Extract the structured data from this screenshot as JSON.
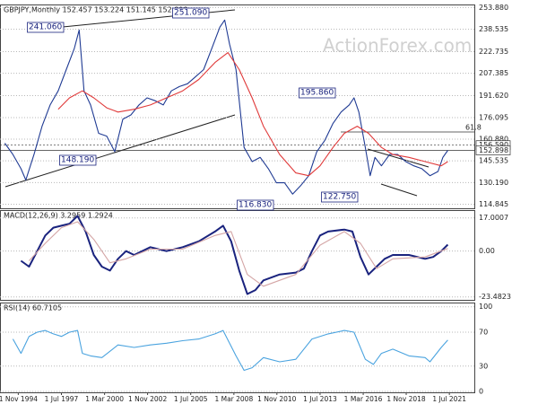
{
  "chart_data": [
    {
      "type": "line",
      "title": "GBPJPY,Monthly 152.457 153.224 151.145 152.898",
      "watermark": "ActionForex.com",
      "xlim": [
        1993.7,
        2023.1
      ],
      "ylim": [
        112,
        256
      ],
      "yticks": [
        {
          "value": 253.88,
          "label": "253.880"
        },
        {
          "value": 238.535,
          "label": "238.535"
        },
        {
          "value": 222.735,
          "label": "222.735"
        },
        {
          "value": 207.385,
          "label": "207.385"
        },
        {
          "value": 191.62,
          "label": "191.620"
        },
        {
          "value": 176.095,
          "label": "176.095"
        },
        {
          "value": 160.88,
          "label": "160.880"
        },
        {
          "value": 145.535,
          "label": "145.535"
        },
        {
          "value": 130.19,
          "label": "130.190"
        },
        {
          "value": 114.845,
          "label": "114.845"
        }
      ],
      "price_levels": [
        {
          "value": 156.59,
          "label": "156.590"
        },
        {
          "value": 152.898,
          "label": "152.898"
        }
      ],
      "annotations": [
        "241.060",
        "251.090",
        "148.190",
        "116.830",
        "195.860",
        "122.750",
        "61.8"
      ],
      "series": [
        {
          "name": "GBPJPY",
          "color": "#1f3a93",
          "x": [
            1994.0,
            1994.5,
            1995.0,
            1995.3,
            1995.8,
            1996.3,
            1996.8,
            1997.3,
            1997.8,
            1998.3,
            1998.6,
            1998.9,
            1999.3,
            1999.8,
            2000.3,
            2000.8,
            2001.3,
            2001.8,
            2002.3,
            2002.8,
            2003.3,
            2003.8,
            2004.3,
            2004.8,
            2005.3,
            2005.8,
            2006.3,
            2006.8,
            2007.3,
            2007.6,
            2007.9,
            2008.3,
            2008.8,
            2009.3,
            2009.8,
            2010.3,
            2010.8,
            2011.3,
            2011.8,
            2012.3,
            2012.8,
            2013.3,
            2013.8,
            2014.3,
            2014.8,
            2015.3,
            2015.6,
            2015.9,
            2016.3,
            2016.6,
            2016.9,
            2017.3,
            2017.8,
            2018.3,
            2018.8,
            2019.3,
            2019.8,
            2020.3,
            2020.8,
            2021.1,
            2021.4
          ],
          "values": [
            158,
            150,
            140,
            132,
            150,
            170,
            185,
            195,
            210,
            225,
            238,
            195,
            185,
            165,
            163,
            152,
            175,
            178,
            185,
            190,
            188,
            185,
            195,
            198,
            200,
            205,
            210,
            225,
            240,
            245,
            228,
            210,
            155,
            145,
            148,
            140,
            130,
            130,
            122,
            128,
            135,
            152,
            160,
            172,
            180,
            185,
            190,
            180,
            155,
            135,
            148,
            142,
            150,
            150,
            145,
            142,
            140,
            135,
            138,
            148,
            152.898
          ]
        },
        {
          "name": "SMA",
          "color": "#e03a3a",
          "x": [
            1997.3,
            1998.0,
            1998.8,
            1999.5,
            2000.3,
            2001.0,
            2002.0,
            2003.0,
            2004.0,
            2005.0,
            2006.0,
            2007.0,
            2007.8,
            2008.5,
            2009.3,
            2010.0,
            2011.0,
            2012.0,
            2012.8,
            2013.5,
            2014.3,
            2015.0,
            2015.8,
            2016.5,
            2017.3,
            2018.0,
            2019.0,
            2020.0,
            2021.0,
            2021.4
          ],
          "values": [
            182,
            190,
            195,
            190,
            183,
            180,
            182,
            185,
            190,
            195,
            203,
            215,
            222,
            210,
            190,
            170,
            150,
            137,
            135,
            142,
            155,
            165,
            170,
            165,
            155,
            150,
            148,
            145,
            142,
            145
          ]
        }
      ]
    },
    {
      "type": "line",
      "title": "MACD(12,26,9) 3.2959 1.2924",
      "xlim": [
        1993.7,
        2023.1
      ],
      "ylim": [
        -25,
        21
      ],
      "yticks": [
        {
          "value": 17.0007,
          "label": "17.0007"
        },
        {
          "value": 0,
          "label": "0.00"
        },
        {
          "value": -23.4823,
          "label": "-23.4823"
        }
      ],
      "series": [
        {
          "name": "MACD",
          "color": "#1a237e",
          "x": [
            1995.0,
            1995.5,
            1996.0,
            1996.5,
            1997.0,
            1997.5,
            1998.0,
            1998.5,
            1999.0,
            1999.5,
            2000.0,
            2000.5,
            2001.0,
            2001.5,
            2002.0,
            2003.0,
            2004.0,
            2005.0,
            2006.0,
            2007.0,
            2007.5,
            2008.0,
            2008.5,
            2009.0,
            2009.5,
            2010.0,
            2011.0,
            2012.0,
            2012.5,
            2013.0,
            2013.5,
            2014.0,
            2015.0,
            2015.5,
            2016.0,
            2016.5,
            2017.0,
            2017.5,
            2018.0,
            2019.0,
            2020.0,
            2020.5,
            2021.0,
            2021.4
          ],
          "values": [
            -5,
            -8,
            0,
            8,
            12,
            13,
            14,
            18,
            10,
            -2,
            -8,
            -10,
            -4,
            0,
            -2,
            2,
            0,
            2,
            5,
            10,
            13,
            5,
            -10,
            -22,
            -20,
            -15,
            -12,
            -11,
            -9,
            0,
            8,
            10,
            11,
            10,
            -3,
            -12,
            -8,
            -4,
            -2,
            -2,
            -4,
            -3,
            0,
            3.2959
          ]
        },
        {
          "name": "Signal",
          "color": "#d4a5a5",
          "x": [
            1995.5,
            1996.5,
            1997.5,
            1998.5,
            1999.5,
            2000.5,
            2001.5,
            2003.0,
            2005.0,
            2007.0,
            2008.0,
            2009.0,
            2010.0,
            2012.0,
            2013.5,
            2015.0,
            2016.0,
            2017.0,
            2018.0,
            2020.0,
            2021.4
          ],
          "values": [
            -5,
            4,
            12,
            15,
            6,
            -6,
            -4,
            1,
            1,
            8,
            10,
            -12,
            -18,
            -12,
            3,
            10,
            4,
            -9,
            -4,
            -3,
            1.2924
          ]
        }
      ]
    },
    {
      "type": "line",
      "title": "RSI(14) 60.7105",
      "xlim": [
        1993.7,
        2023.1
      ],
      "ylim": [
        -1,
        105
      ],
      "yticks": [
        100,
        70,
        30,
        0
      ],
      "xticks": [
        {
          "value": 1994.83,
          "label": "1 Nov 1994"
        },
        {
          "value": 1997.5,
          "label": "1 Jul 1997"
        },
        {
          "value": 2000.17,
          "label": "1 Mar 2000"
        },
        {
          "value": 2002.83,
          "label": "1 Nov 2002"
        },
        {
          "value": 2005.5,
          "label": "1 Jul 2005"
        },
        {
          "value": 2008.17,
          "label": "1 Mar 2008"
        },
        {
          "value": 2010.83,
          "label": "1 Nov 2010"
        },
        {
          "value": 2013.5,
          "label": "1 Jul 2013"
        },
        {
          "value": 2016.17,
          "label": "1 Mar 2016"
        },
        {
          "value": 2018.83,
          "label": "1 Nov 2018"
        },
        {
          "value": 2021.5,
          "label": "1 Jul 2021"
        }
      ],
      "series": [
        {
          "name": "RSI",
          "color": "#4aa3df",
          "x": [
            1994.5,
            1995.0,
            1995.5,
            1996.0,
            1996.5,
            1997.0,
            1997.5,
            1998.0,
            1998.5,
            1998.8,
            1999.3,
            2000.0,
            2001.0,
            2002.0,
            2003.0,
            2004.0,
            2005.0,
            2006.0,
            2007.0,
            2007.5,
            2008.3,
            2008.8,
            2009.3,
            2010.0,
            2011.0,
            2012.0,
            2013.0,
            2014.0,
            2015.0,
            2015.6,
            2016.3,
            2016.8,
            2017.3,
            2018.0,
            2019.0,
            2020.0,
            2020.3,
            2021.0,
            2021.4
          ],
          "values": [
            62,
            45,
            65,
            70,
            72,
            68,
            65,
            70,
            72,
            45,
            42,
            40,
            55,
            52,
            55,
            57,
            60,
            62,
            68,
            72,
            42,
            25,
            28,
            40,
            35,
            38,
            62,
            68,
            72,
            70,
            38,
            32,
            45,
            50,
            42,
            40,
            35,
            52,
            60.7105
          ]
        }
      ]
    }
  ]
}
